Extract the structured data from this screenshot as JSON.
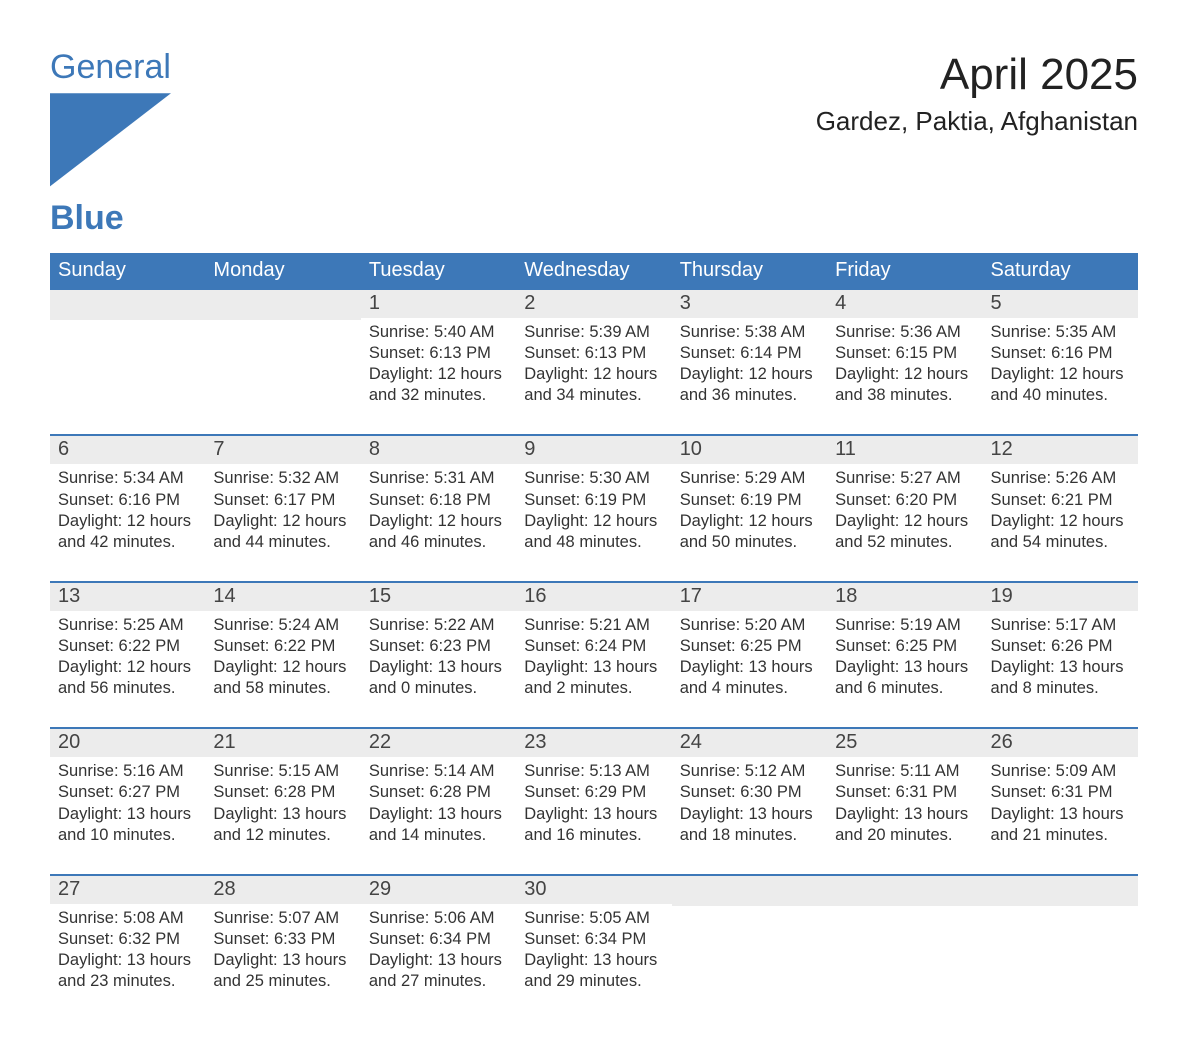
{
  "colors": {
    "accent": "#3d78b8",
    "header_text": "#ffffff",
    "daynum_bg": "#ececec",
    "daynum_text": "#444444",
    "body_text": "#333333",
    "rule": "#3d78b8",
    "page_bg": "#ffffff"
  },
  "logo": {
    "line1": "General",
    "line2": "Blue",
    "icon_name": "flag-icon"
  },
  "title": "April 2025",
  "location": "Gardez, Paktia, Afghanistan",
  "day_headers": [
    "Sunday",
    "Monday",
    "Tuesday",
    "Wednesday",
    "Thursday",
    "Friday",
    "Saturday"
  ],
  "weeks": [
    [
      null,
      null,
      {
        "n": "1",
        "sunrise": "5:40 AM",
        "sunset": "6:13 PM",
        "dl1": "Daylight: 12 hours",
        "dl2": "and 32 minutes."
      },
      {
        "n": "2",
        "sunrise": "5:39 AM",
        "sunset": "6:13 PM",
        "dl1": "Daylight: 12 hours",
        "dl2": "and 34 minutes."
      },
      {
        "n": "3",
        "sunrise": "5:38 AM",
        "sunset": "6:14 PM",
        "dl1": "Daylight: 12 hours",
        "dl2": "and 36 minutes."
      },
      {
        "n": "4",
        "sunrise": "5:36 AM",
        "sunset": "6:15 PM",
        "dl1": "Daylight: 12 hours",
        "dl2": "and 38 minutes."
      },
      {
        "n": "5",
        "sunrise": "5:35 AM",
        "sunset": "6:16 PM",
        "dl1": "Daylight: 12 hours",
        "dl2": "and 40 minutes."
      }
    ],
    [
      {
        "n": "6",
        "sunrise": "5:34 AM",
        "sunset": "6:16 PM",
        "dl1": "Daylight: 12 hours",
        "dl2": "and 42 minutes."
      },
      {
        "n": "7",
        "sunrise": "5:32 AM",
        "sunset": "6:17 PM",
        "dl1": "Daylight: 12 hours",
        "dl2": "and 44 minutes."
      },
      {
        "n": "8",
        "sunrise": "5:31 AM",
        "sunset": "6:18 PM",
        "dl1": "Daylight: 12 hours",
        "dl2": "and 46 minutes."
      },
      {
        "n": "9",
        "sunrise": "5:30 AM",
        "sunset": "6:19 PM",
        "dl1": "Daylight: 12 hours",
        "dl2": "and 48 minutes."
      },
      {
        "n": "10",
        "sunrise": "5:29 AM",
        "sunset": "6:19 PM",
        "dl1": "Daylight: 12 hours",
        "dl2": "and 50 minutes."
      },
      {
        "n": "11",
        "sunrise": "5:27 AM",
        "sunset": "6:20 PM",
        "dl1": "Daylight: 12 hours",
        "dl2": "and 52 minutes."
      },
      {
        "n": "12",
        "sunrise": "5:26 AM",
        "sunset": "6:21 PM",
        "dl1": "Daylight: 12 hours",
        "dl2": "and 54 minutes."
      }
    ],
    [
      {
        "n": "13",
        "sunrise": "5:25 AM",
        "sunset": "6:22 PM",
        "dl1": "Daylight: 12 hours",
        "dl2": "and 56 minutes."
      },
      {
        "n": "14",
        "sunrise": "5:24 AM",
        "sunset": "6:22 PM",
        "dl1": "Daylight: 12 hours",
        "dl2": "and 58 minutes."
      },
      {
        "n": "15",
        "sunrise": "5:22 AM",
        "sunset": "6:23 PM",
        "dl1": "Daylight: 13 hours",
        "dl2": "and 0 minutes."
      },
      {
        "n": "16",
        "sunrise": "5:21 AM",
        "sunset": "6:24 PM",
        "dl1": "Daylight: 13 hours",
        "dl2": "and 2 minutes."
      },
      {
        "n": "17",
        "sunrise": "5:20 AM",
        "sunset": "6:25 PM",
        "dl1": "Daylight: 13 hours",
        "dl2": "and 4 minutes."
      },
      {
        "n": "18",
        "sunrise": "5:19 AM",
        "sunset": "6:25 PM",
        "dl1": "Daylight: 13 hours",
        "dl2": "and 6 minutes."
      },
      {
        "n": "19",
        "sunrise": "5:17 AM",
        "sunset": "6:26 PM",
        "dl1": "Daylight: 13 hours",
        "dl2": "and 8 minutes."
      }
    ],
    [
      {
        "n": "20",
        "sunrise": "5:16 AM",
        "sunset": "6:27 PM",
        "dl1": "Daylight: 13 hours",
        "dl2": "and 10 minutes."
      },
      {
        "n": "21",
        "sunrise": "5:15 AM",
        "sunset": "6:28 PM",
        "dl1": "Daylight: 13 hours",
        "dl2": "and 12 minutes."
      },
      {
        "n": "22",
        "sunrise": "5:14 AM",
        "sunset": "6:28 PM",
        "dl1": "Daylight: 13 hours",
        "dl2": "and 14 minutes."
      },
      {
        "n": "23",
        "sunrise": "5:13 AM",
        "sunset": "6:29 PM",
        "dl1": "Daylight: 13 hours",
        "dl2": "and 16 minutes."
      },
      {
        "n": "24",
        "sunrise": "5:12 AM",
        "sunset": "6:30 PM",
        "dl1": "Daylight: 13 hours",
        "dl2": "and 18 minutes."
      },
      {
        "n": "25",
        "sunrise": "5:11 AM",
        "sunset": "6:31 PM",
        "dl1": "Daylight: 13 hours",
        "dl2": "and 20 minutes."
      },
      {
        "n": "26",
        "sunrise": "5:09 AM",
        "sunset": "6:31 PM",
        "dl1": "Daylight: 13 hours",
        "dl2": "and 21 minutes."
      }
    ],
    [
      {
        "n": "27",
        "sunrise": "5:08 AM",
        "sunset": "6:32 PM",
        "dl1": "Daylight: 13 hours",
        "dl2": "and 23 minutes."
      },
      {
        "n": "28",
        "sunrise": "5:07 AM",
        "sunset": "6:33 PM",
        "dl1": "Daylight: 13 hours",
        "dl2": "and 25 minutes."
      },
      {
        "n": "29",
        "sunrise": "5:06 AM",
        "sunset": "6:34 PM",
        "dl1": "Daylight: 13 hours",
        "dl2": "and 27 minutes."
      },
      {
        "n": "30",
        "sunrise": "5:05 AM",
        "sunset": "6:34 PM",
        "dl1": "Daylight: 13 hours",
        "dl2": "and 29 minutes."
      },
      null,
      null,
      null
    ]
  ],
  "labels": {
    "sunrise_prefix": "Sunrise: ",
    "sunset_prefix": "Sunset: "
  }
}
